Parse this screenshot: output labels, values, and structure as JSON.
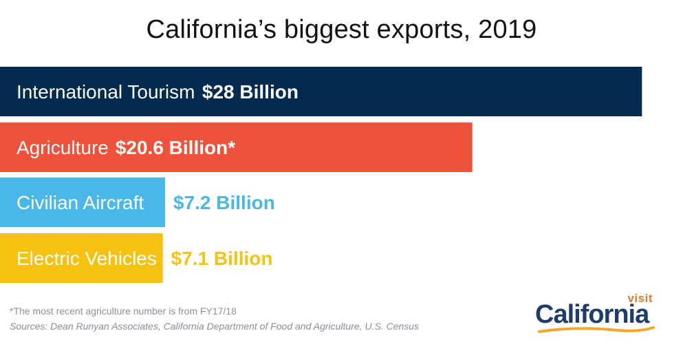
{
  "chart_data": {
    "type": "bar",
    "orientation": "horizontal",
    "title": "California’s biggest exports, 2019",
    "categories": [
      "International Tourism",
      "Agriculture",
      "Civilian Aircraft",
      "Electric Vehicles"
    ],
    "values": [
      28,
      20.6,
      7.2,
      7.1
    ],
    "value_labels": [
      "$28 Billion",
      "$20.6 Billion*",
      "$7.2 Billion",
      "$7.1 Billion"
    ],
    "colors": [
      "#022b4f",
      "#ee523b",
      "#49b8e8",
      "#f7c20f"
    ],
    "value_label_colors": [
      "#ffffff",
      "#ffffff",
      "#49b8e8",
      "#f7c20f"
    ],
    "xlim": [
      0,
      29.4
    ],
    "grid": false,
    "legend": "none"
  },
  "footnote": "*The most recent agriculture number is from FY17/18",
  "sources": "Sources: Dean Runyan Associates, California Department of Food and Agriculture, U.S. Census",
  "logo": {
    "visit": "visit",
    "word": "California",
    "colors": {
      "word": "#1e3d6b",
      "visit": "#e07a2a",
      "swoosh": "#f6a623"
    }
  }
}
